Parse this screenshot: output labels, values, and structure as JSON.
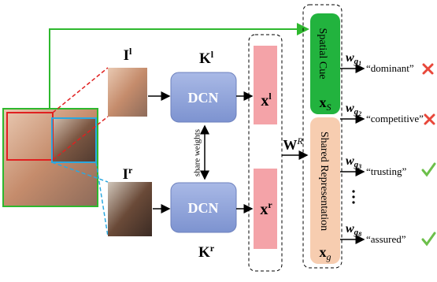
{
  "inputs": {
    "left": {
      "base": "I",
      "sup": "l"
    },
    "right": {
      "base": "I",
      "sup": "r"
    }
  },
  "networks": {
    "top": {
      "label": "DCN",
      "kernel": {
        "base": "K",
        "sup": "l"
      }
    },
    "bottom": {
      "label": "DCN",
      "kernel": {
        "base": "K",
        "sup": "r"
      }
    },
    "link": "share weights"
  },
  "features": {
    "left": {
      "base": "x",
      "sup": "l"
    },
    "right": {
      "base": "x",
      "sup": "r"
    }
  },
  "projection": {
    "base": "W",
    "sup": "R"
  },
  "representations": {
    "spatial": {
      "label": "Spatial Cue",
      "symbol": {
        "base": "x",
        "sub": "S"
      }
    },
    "shared": {
      "label": "Shared Representation",
      "symbol": {
        "base": "x",
        "sub": "g"
      }
    }
  },
  "outputs": [
    {
      "weight": {
        "base": "w",
        "sub": "g",
        "subsub": "1"
      },
      "label": "“dominant”"
    },
    {
      "weight": {
        "base": "w",
        "sub": "g",
        "subsub": "2"
      },
      "label": "“competitive”"
    },
    {
      "weight": {
        "base": "w",
        "sub": "g",
        "subsub": "3"
      },
      "label": "“trusting”"
    },
    {
      "weight": {
        "base": "w",
        "sub": "g",
        "subsub": "8"
      },
      "label": "“assured”"
    }
  ]
}
